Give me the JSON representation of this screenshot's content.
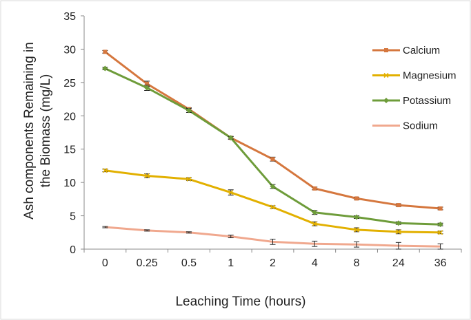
{
  "chart_data": {
    "type": "line",
    "xlabel": "Leaching Time (hours)",
    "ylabel": [
      "Ash components Remaining in",
      "the Biomass (mg/L)"
    ],
    "categories": [
      "0",
      "0.25",
      "0.5",
      "1",
      "2",
      "4",
      "8",
      "24",
      "36"
    ],
    "ylim": [
      0,
      35
    ],
    "yticks": [
      0,
      5,
      10,
      15,
      20,
      25,
      30,
      35
    ],
    "grid": false,
    "legend_position": "right",
    "series": [
      {
        "name": "Calcium",
        "color": "#d5773e",
        "marker": "square",
        "values": [
          29.6,
          24.8,
          21.0,
          16.7,
          13.5,
          9.1,
          7.6,
          6.6,
          6.1
        ],
        "errors": [
          0.2,
          0.4,
          0.2,
          0.2,
          0.3,
          0.2,
          0.2,
          0.2,
          0.2
        ]
      },
      {
        "name": "Magnesium",
        "color": "#e2b000",
        "marker": "x",
        "values": [
          11.8,
          11.0,
          10.5,
          8.5,
          6.3,
          3.8,
          2.9,
          2.6,
          2.5
        ],
        "errors": [
          0.2,
          0.3,
          0.2,
          0.4,
          0.2,
          0.3,
          0.3,
          0.3,
          0.2
        ]
      },
      {
        "name": "Potassium",
        "color": "#6e9c3a",
        "marker": "diamond",
        "values": [
          27.1,
          24.2,
          20.8,
          16.7,
          9.4,
          5.5,
          4.8,
          3.9,
          3.7
        ],
        "errors": [
          0.2,
          0.4,
          0.3,
          0.2,
          0.3,
          0.3,
          0.2,
          0.2,
          0.2
        ]
      },
      {
        "name": "Sodium",
        "color": "#f0a88e",
        "marker": "none",
        "values": [
          3.3,
          2.8,
          2.5,
          1.9,
          1.1,
          0.8,
          0.7,
          0.5,
          0.4
        ],
        "errors": [
          0.1,
          0.1,
          0.1,
          0.2,
          0.4,
          0.4,
          0.4,
          0.5,
          0.4
        ]
      }
    ]
  }
}
